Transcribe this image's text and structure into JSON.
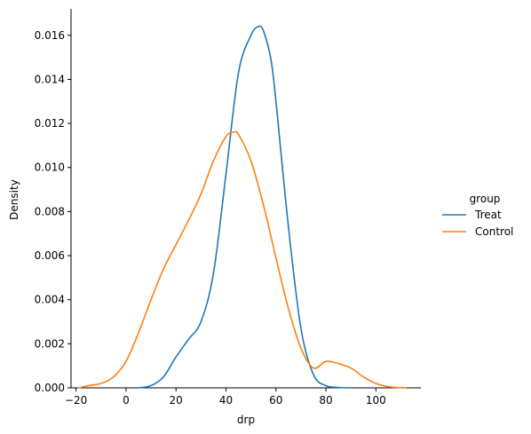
{
  "chart_data": {
    "type": "line",
    "xlabel": "drp",
    "ylabel": "Density",
    "xlim": [
      -22,
      118
    ],
    "ylim": [
      0,
      0.0172
    ],
    "xticks": [
      -20,
      0,
      20,
      40,
      60,
      80,
      100
    ],
    "xtick_labels": [
      "−20",
      "0",
      "20",
      "40",
      "60",
      "80",
      "100"
    ],
    "yticks": [
      0,
      0.002,
      0.004,
      0.006,
      0.008,
      0.01,
      0.012,
      0.014,
      0.016
    ],
    "ytick_labels": [
      "0.000",
      "0.002",
      "0.004",
      "0.006",
      "0.008",
      "0.010",
      "0.012",
      "0.014",
      "0.016"
    ],
    "grid": false,
    "legend": {
      "title": "group",
      "placement": "right"
    },
    "series": [
      {
        "name": "Treat",
        "color": "#1f77b4",
        "x": [
          5,
          10,
          15,
          20,
          25,
          30,
          35,
          40,
          45,
          50,
          53,
          55,
          58,
          60,
          65,
          70,
          75,
          80,
          85,
          89
        ],
        "y": [
          0.0,
          0.0001,
          0.0005,
          0.0014,
          0.0022,
          0.003,
          0.0052,
          0.0097,
          0.0143,
          0.016,
          0.0164,
          0.0162,
          0.0149,
          0.013,
          0.0073,
          0.0027,
          0.0006,
          0.0001,
          2e-05,
          0.0
        ]
      },
      {
        "name": "Control",
        "color": "#ff7f0e",
        "x": [
          -19,
          -15,
          -10,
          -5,
          0,
          5,
          10,
          15,
          20,
          25,
          30,
          35,
          40,
          43,
          45,
          50,
          55,
          60,
          65,
          70,
          75,
          80,
          85,
          90,
          95,
          100,
          105,
          112
        ],
        "y": [
          0.0,
          0.0001,
          0.0002,
          0.0005,
          0.0012,
          0.0025,
          0.004,
          0.0054,
          0.0065,
          0.0076,
          0.0088,
          0.0103,
          0.0114,
          0.0116,
          0.0115,
          0.0103,
          0.0083,
          0.0059,
          0.0036,
          0.0018,
          0.0009,
          0.0012,
          0.0011,
          0.0009,
          0.0005,
          0.0002,
          5e-05,
          0.0
        ]
      }
    ]
  }
}
